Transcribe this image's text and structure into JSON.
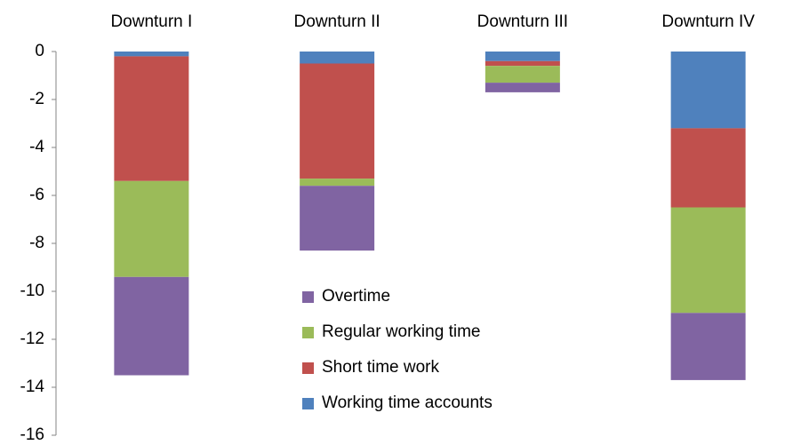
{
  "chart_data": {
    "type": "bar",
    "stacked": true,
    "categories": [
      "Downturn I",
      "Downturn II",
      "Downturn III",
      "Downturn IV"
    ],
    "series": [
      {
        "name": "Working time accounts",
        "color": "#4f81bd",
        "values": [
          -0.2,
          -0.5,
          -0.4,
          -3.2
        ]
      },
      {
        "name": "Short time work",
        "color": "#c0504d",
        "values": [
          -5.2,
          -4.8,
          -0.2,
          -3.3
        ]
      },
      {
        "name": "Regular working time",
        "color": "#9bbb59",
        "values": [
          -4.0,
          -0.3,
          -0.7,
          -4.4
        ]
      },
      {
        "name": "Overtime",
        "color": "#8064a2",
        "values": [
          -4.1,
          -2.7,
          -0.4,
          -2.8
        ]
      }
    ],
    "ylim": [
      -16,
      0
    ],
    "yticks": [
      0,
      -2,
      -4,
      -6,
      -8,
      -10,
      -12,
      -14,
      -16
    ],
    "grid": false,
    "legend_position": "center",
    "legend_reversed": true
  }
}
